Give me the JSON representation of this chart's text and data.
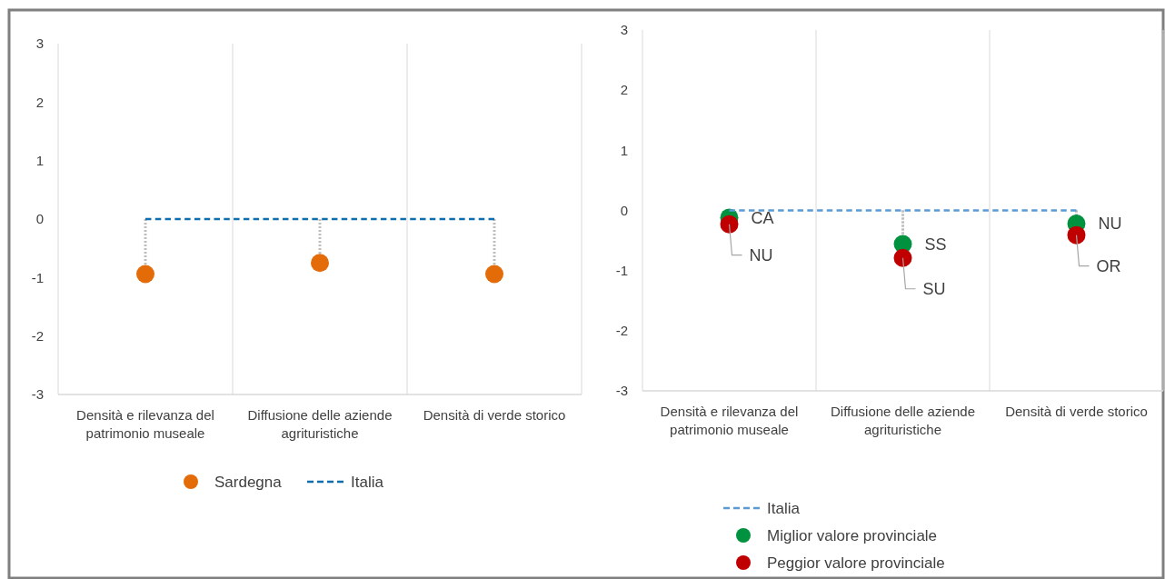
{
  "chart_data": [
    {
      "type": "scatter",
      "categories": [
        "Densità e rilevanza del patrimonio museale",
        "Diffusione delle aziende agrituristiche",
        "Densità di verde storico"
      ],
      "series": [
        {
          "name": "Sardegna",
          "color": "#e36c09",
          "values": [
            -0.94,
            -0.75,
            -0.94
          ]
        },
        {
          "name": "Italia",
          "type": "line",
          "color": "#0e6fb0",
          "values": [
            0,
            0,
            0
          ],
          "line_style": "dashed",
          "marker": "none"
        }
      ],
      "ylim": [
        -3,
        3
      ],
      "yticks": [
        -3,
        -2,
        -1,
        0,
        1,
        2,
        3
      ],
      "grid": "x",
      "legend": "bottom",
      "marker": "circle"
    },
    {
      "type": "scatter",
      "categories": [
        "Densità e rilevanza del patrimonio museale",
        "Diffusione delle aziende agrituristiche",
        "Densità di verde storico"
      ],
      "series": [
        {
          "name": "Italia",
          "type": "line",
          "color": "#5b9bd5",
          "values": [
            0,
            0,
            0
          ],
          "line_style": "dashed",
          "marker": "none"
        },
        {
          "name": "Miglior valore provinciale",
          "color": "#00923f",
          "values": [
            -0.12,
            -0.56,
            -0.22
          ]
        },
        {
          "name": "Peggior valore provinciale",
          "color": "#c00000",
          "values": [
            -0.23,
            -0.79,
            -0.41
          ]
        }
      ],
      "annotations": [
        {
          "text": "CA",
          "x": "Densità e rilevanza del patrimonio museale",
          "y": -0.12
        },
        {
          "text": "NU",
          "x": "Densità e rilevanza del patrimonio museale",
          "y": -0.23
        },
        {
          "text": "SS",
          "x": "Diffusione delle aziende agrituristiche",
          "y": -0.56
        },
        {
          "text": "SU",
          "x": "Diffusione delle aziende agrituristiche",
          "y": -0.79
        },
        {
          "text": "NU",
          "x": "Densità di verde storico",
          "y": -0.22
        },
        {
          "text": "OR",
          "x": "Densità di verde storico",
          "y": -0.41
        }
      ],
      "ylim": [
        -3,
        3
      ],
      "yticks": [
        -3,
        -2,
        -1,
        0,
        1,
        2,
        3
      ],
      "grid": "x",
      "legend": "bottom",
      "marker": "circle"
    }
  ]
}
